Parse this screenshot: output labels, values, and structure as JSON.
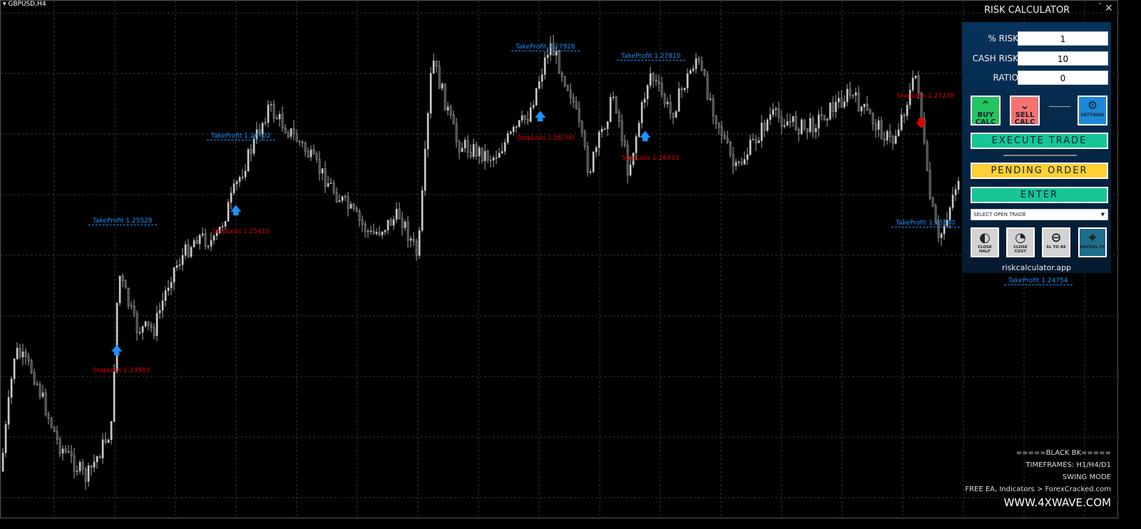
{
  "chart": {
    "symbol": "GBPUSD,H4",
    "bull_color": "#1e90ff",
    "bear_color": "#e00000",
    "labels": [
      {
        "type": "tp",
        "text": "TakeProfit 1.25528"
      },
      {
        "type": "tp",
        "text": "TakeProfit 1.26702"
      },
      {
        "type": "tp",
        "text": "TakeProfit 1.27928"
      },
      {
        "type": "tp",
        "text": "TakeProfit 1.27810"
      },
      {
        "type": "tp",
        "text": "TakeProfit 1.25540"
      },
      {
        "type": "tp",
        "text": "TakeProfit 1.24754"
      },
      {
        "type": "sl",
        "text": "StopLoss 1.23503"
      },
      {
        "type": "sl",
        "text": "StopLoss 1.25415"
      },
      {
        "type": "sl",
        "text": "StopLoss 1.26700"
      },
      {
        "type": "sl",
        "text": "StopLoss 1.26433"
      },
      {
        "type": "sl",
        "text": "StopLoss 1.27238"
      }
    ],
    "signals": [
      "buy",
      "buy",
      "buy",
      "buy",
      "sell"
    ]
  },
  "panel": {
    "title": "RISK CALCULATOR",
    "collapse": "˄",
    "close": "✕",
    "fields": [
      {
        "label": "% RISK",
        "value": "1"
      },
      {
        "label": "CASH RISK",
        "value": "10"
      },
      {
        "label": "RATIO",
        "value": "0"
      }
    ],
    "buy_calc": "BUY CALC",
    "sell_calc": "SELL CALC",
    "settings": "SETTINGS",
    "execute": "EXECUTE TRADE",
    "pending": "PENDING ORDER",
    "enter": "ENTER",
    "select_trade": "SELECT OPEN TRADE",
    "close_half": "CLOSE HALF",
    "close_cust": "CLOSE CUST",
    "sl_to_be": "SL TO BE",
    "partial_tp": "PARTIAL TP",
    "site": "riskcalculator.app",
    "colors": {
      "buy": "#22c55e",
      "sell": "#f87171",
      "settings": "#1e88d8",
      "execute": "#17c596",
      "pending": "#ffd033",
      "partial": "#1d6e8a"
    }
  },
  "info": {
    "line1": "=====BLACK BK=====",
    "line2": "TIMEFRAMES: H1/H4/D1",
    "line3": "SWING MODE",
    "line4": "FREE EA, Indicators > ForexCracked.com",
    "line5": "WWW.4XWAVE.COM"
  }
}
